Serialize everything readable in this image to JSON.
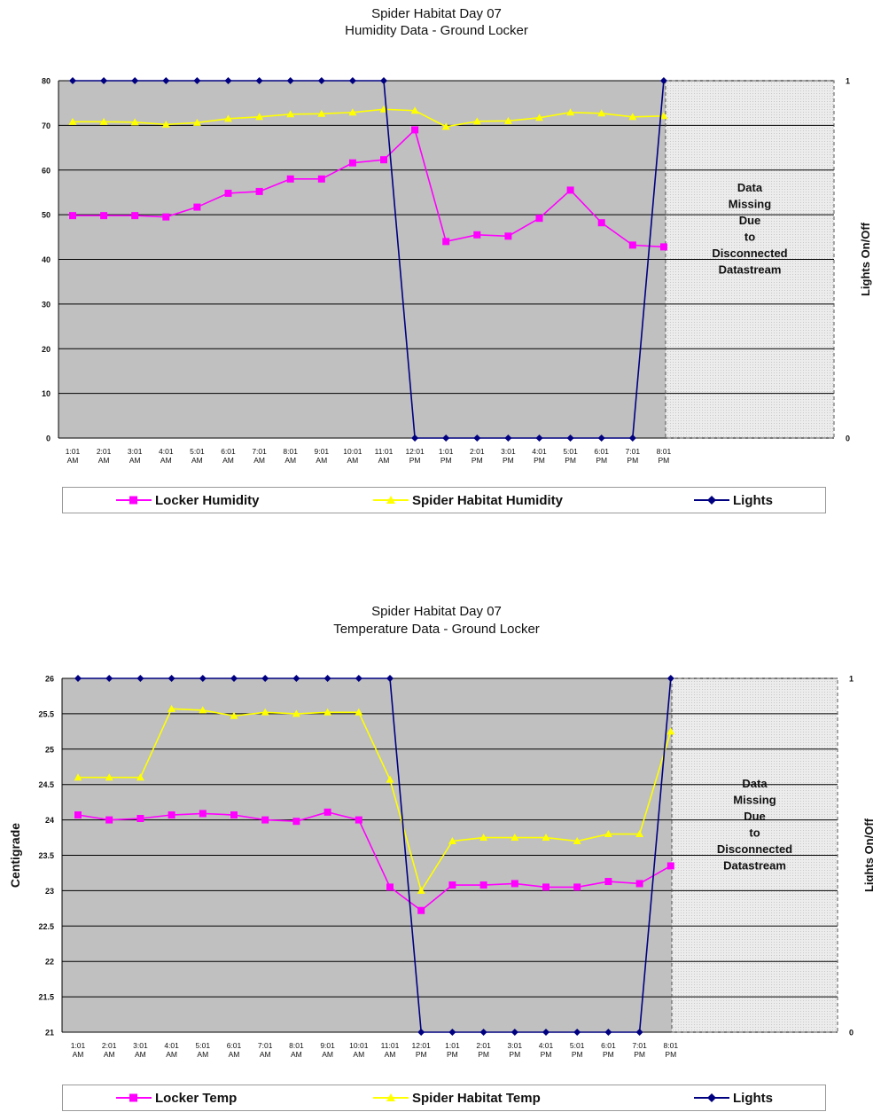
{
  "charts": [
    {
      "title_line1": "Spider Habitat Day 07",
      "title_line2": "Humidity Data - Ground Locker",
      "legend": [
        "Locker Humidity",
        "Spider Habitat Humidity",
        "Lights"
      ],
      "missing_note": [
        "Data",
        "Missing",
        "Due",
        "to",
        "Disconnected",
        "Datastream"
      ],
      "right_axis_label": "Lights On/Off"
    },
    {
      "title_line1": "Spider Habitat Day 07",
      "title_line2": "Temperature Data - Ground Locker",
      "legend": [
        "Locker Temp",
        "Spider Habitat Temp",
        "Lights"
      ],
      "missing_note": [
        "Data",
        "Missing",
        "Due",
        "to",
        "Disconnected",
        "Datastream"
      ],
      "right_axis_label": "Lights On/Off",
      "left_axis_label": "Centigrade"
    }
  ],
  "chart_data": [
    {
      "type": "line",
      "title": "Spider Habitat Day 07\nHumidity Data - Ground Locker",
      "x": [
        "1:01 AM",
        "2:01 AM",
        "3:01 AM",
        "4:01 AM",
        "5:01 AM",
        "6:01 AM",
        "7:01 AM",
        "8:01 AM",
        "9:01 AM",
        "10:01 AM",
        "11:01 AM",
        "12:01 PM",
        "1:01 PM",
        "2:01 PM",
        "3:01 PM",
        "4:01 PM",
        "5:01 PM",
        "6:01 PM",
        "7:01 PM",
        "8:01 PM"
      ],
      "ylabel": "",
      "ylim": [
        0,
        80
      ],
      "yticks": [
        "0",
        "10",
        "20",
        "30",
        "40",
        "50",
        "60",
        "70",
        "80"
      ],
      "y2label": "Lights On/Off",
      "y2lim": [
        0,
        1
      ],
      "y2ticks": [
        "0",
        "1"
      ],
      "grid": true,
      "legend_position": "bottom",
      "series": [
        {
          "name": "Locker Humidity",
          "axis": "left",
          "color": "#ff00ff",
          "marker": "square",
          "values": [
            49.8,
            49.8,
            49.8,
            49.5,
            51.7,
            54.8,
            55.2,
            58,
            58,
            61.6,
            62.3,
            69,
            44,
            45.5,
            45.2,
            49.2,
            55.5,
            48.2,
            43.2,
            42.8
          ]
        },
        {
          "name": "Spider Habitat Humidity",
          "axis": "left",
          "color": "#ffff00",
          "marker": "triangle",
          "values": [
            70.8,
            70.8,
            70.7,
            70.2,
            70.6,
            71.5,
            71.9,
            72.5,
            72.6,
            72.9,
            73.6,
            73.3,
            69.7,
            70.9,
            71,
            71.7,
            72.9,
            72.7,
            71.9,
            72.1
          ]
        },
        {
          "name": "Lights",
          "axis": "right",
          "color": "#000080",
          "marker": "diamond",
          "values": [
            1,
            1,
            1,
            1,
            1,
            1,
            1,
            1,
            1,
            1,
            1,
            0,
            0,
            0,
            0,
            0,
            0,
            0,
            0,
            1
          ]
        }
      ],
      "annotation": "Data Missing Due to Disconnected Datastream"
    },
    {
      "type": "line",
      "title": "Spider Habitat Day 07\nTemperature Data - Ground Locker",
      "x": [
        "1:01 AM",
        "2:01 AM",
        "3:01 AM",
        "4:01 AM",
        "5:01 AM",
        "6:01 AM",
        "7:01 AM",
        "8:01 AM",
        "9:01 AM",
        "10:01 AM",
        "11:01 AM",
        "12:01 PM",
        "1:01 PM",
        "2:01 PM",
        "3:01 PM",
        "4:01 PM",
        "5:01 PM",
        "6:01 PM",
        "7:01 PM",
        "8:01 PM"
      ],
      "ylabel": "Centigrade",
      "ylim": [
        21,
        26
      ],
      "yticks": [
        "21",
        "21.5",
        "22",
        "22.5",
        "23",
        "23.5",
        "24",
        "24.5",
        "25",
        "25.5",
        "26"
      ],
      "y2label": "Lights On/Off",
      "y2lim": [
        0,
        1
      ],
      "y2ticks": [
        "0",
        "1"
      ],
      "grid": true,
      "legend_position": "bottom",
      "series": [
        {
          "name": "Locker Temp",
          "axis": "left",
          "color": "#ff00ff",
          "marker": "square",
          "values": [
            24.07,
            24,
            24.02,
            24.07,
            24.09,
            24.07,
            24,
            23.98,
            24.11,
            24,
            23.05,
            22.72,
            23.08,
            23.08,
            23.1,
            23.05,
            23.05,
            23.13,
            23.1,
            23.35
          ]
        },
        {
          "name": "Spider Habitat Temp",
          "axis": "left",
          "color": "#ffff00",
          "marker": "triangle",
          "values": [
            24.6,
            24.6,
            24.6,
            25.57,
            25.55,
            25.47,
            25.52,
            25.5,
            25.52,
            25.52,
            24.57,
            23,
            23.7,
            23.75,
            23.75,
            23.75,
            23.7,
            23.8,
            23.8,
            25.25
          ]
        },
        {
          "name": "Lights",
          "axis": "right",
          "color": "#000080",
          "marker": "diamond",
          "values": [
            1,
            1,
            1,
            1,
            1,
            1,
            1,
            1,
            1,
            1,
            1,
            0,
            0,
            0,
            0,
            0,
            0,
            0,
            0,
            1
          ]
        }
      ],
      "annotation": "Data Missing Due to Disconnected Datastream"
    }
  ]
}
